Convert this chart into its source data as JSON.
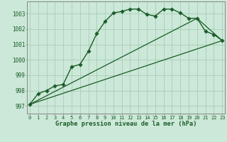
{
  "title": "Graphe pression niveau de la mer (hPa)",
  "bg_color": "#cce8d8",
  "line_color": "#1a5c28",
  "grid_color": "#a8cdb8",
  "x_ticks": [
    0,
    1,
    2,
    3,
    4,
    5,
    6,
    7,
    8,
    9,
    10,
    11,
    12,
    13,
    14,
    15,
    16,
    17,
    18,
    19,
    20,
    21,
    22,
    23
  ],
  "y_ticks": [
    997,
    998,
    999,
    1000,
    1001,
    1002,
    1003
  ],
  "ylim": [
    996.5,
    1003.8
  ],
  "xlim": [
    -0.3,
    23.3
  ],
  "line1_x": [
    0,
    1,
    2,
    3,
    4,
    5,
    6,
    7,
    8,
    9,
    10,
    11,
    12,
    13,
    14,
    15,
    16,
    17,
    18,
    19,
    20,
    21,
    22,
    23
  ],
  "line1_y": [
    997.1,
    997.8,
    998.0,
    998.3,
    998.4,
    999.55,
    999.7,
    1000.55,
    1001.7,
    1002.5,
    1003.05,
    1003.15,
    1003.3,
    1003.3,
    1002.95,
    1002.85,
    1003.3,
    1003.3,
    1003.05,
    1002.7,
    1002.7,
    1001.85,
    1001.65,
    1001.25
  ],
  "line2_x": [
    0,
    23
  ],
  "line2_y": [
    997.1,
    1001.25
  ],
  "line3_x": [
    0,
    20,
    23
  ],
  "line3_y": [
    997.1,
    1002.7,
    1001.25
  ],
  "spine_color": "#888888",
  "tick_label_fontsize": 5.0,
  "xlabel_fontsize": 6.2
}
